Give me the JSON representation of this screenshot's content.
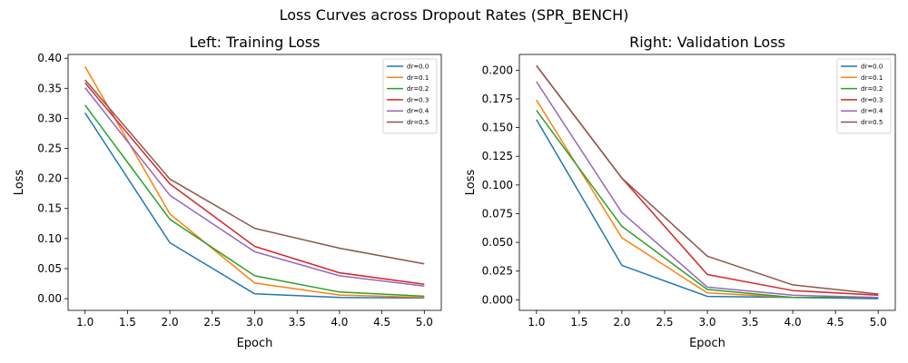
{
  "figure_title": "Loss Curves across Dropout Rates (SPR_BENCH)",
  "colors": [
    "#1f77b4",
    "#ff7f0e",
    "#2ca02c",
    "#d62728",
    "#9467bd",
    "#8c564b"
  ],
  "chart_data": [
    {
      "type": "line",
      "title": "Left: Training Loss",
      "xlabel": "Epoch",
      "ylabel": "Loss",
      "x": [
        1,
        2,
        3,
        4,
        5
      ],
      "xlim": [
        0.8,
        5.2
      ],
      "ylim": [
        -0.0195,
        0.4063
      ],
      "xticks": [
        1.0,
        1.5,
        2.0,
        2.5,
        3.0,
        3.5,
        4.0,
        4.5,
        5.0
      ],
      "xtick_labels": [
        "1.0",
        "1.5",
        "2.0",
        "2.5",
        "3.0",
        "3.5",
        "4.0",
        "4.5",
        "5.0"
      ],
      "yticks": [
        0.0,
        0.05,
        0.1,
        0.15,
        0.2,
        0.25,
        0.3,
        0.35,
        0.4
      ],
      "ytick_labels": [
        "0.00",
        "0.05",
        "0.10",
        "0.15",
        "0.20",
        "0.25",
        "0.30",
        "0.35",
        "0.40"
      ],
      "legend": "top-right",
      "grid": false,
      "series": [
        {
          "name": "dr=0.0",
          "values": [
            0.309,
            0.093,
            0.008,
            0.002,
            0.001
          ]
        },
        {
          "name": "dr=0.1",
          "values": [
            0.386,
            0.141,
            0.026,
            0.006,
            0.002
          ]
        },
        {
          "name": "dr=0.2",
          "values": [
            0.322,
            0.132,
            0.038,
            0.011,
            0.004
          ]
        },
        {
          "name": "dr=0.3",
          "values": [
            0.359,
            0.191,
            0.087,
            0.043,
            0.024
          ]
        },
        {
          "name": "dr=0.4",
          "values": [
            0.351,
            0.172,
            0.078,
            0.038,
            0.021
          ]
        },
        {
          "name": "dr=0.5",
          "values": [
            0.364,
            0.199,
            0.117,
            0.084,
            0.058
          ]
        }
      ]
    },
    {
      "type": "line",
      "title": "Right: Validation Loss",
      "xlabel": "Epoch",
      "ylabel": "Loss",
      "x": [
        1,
        2,
        3,
        4,
        5
      ],
      "xlim": [
        0.8,
        5.2
      ],
      "ylim": [
        -0.0092,
        0.2137
      ],
      "xticks": [
        1.0,
        1.5,
        2.0,
        2.5,
        3.0,
        3.5,
        4.0,
        4.5,
        5.0
      ],
      "xtick_labels": [
        "1.0",
        "1.5",
        "2.0",
        "2.5",
        "3.0",
        "3.5",
        "4.0",
        "4.5",
        "5.0"
      ],
      "yticks": [
        0.0,
        0.025,
        0.05,
        0.075,
        0.1,
        0.125,
        0.15,
        0.175,
        0.2
      ],
      "ytick_labels": [
        "0.000",
        "0.025",
        "0.050",
        "0.075",
        "0.100",
        "0.125",
        "0.150",
        "0.175",
        "0.200"
      ],
      "legend": "top-right",
      "grid": false,
      "series": [
        {
          "name": "dr=0.0",
          "values": [
            0.157,
            0.03,
            0.003,
            0.002,
            0.001
          ]
        },
        {
          "name": "dr=0.1",
          "values": [
            0.174,
            0.054,
            0.006,
            0.002,
            0.002
          ]
        },
        {
          "name": "dr=0.2",
          "values": [
            0.165,
            0.064,
            0.009,
            0.002,
            0.002
          ]
        },
        {
          "name": "dr=0.3",
          "values": [
            0.204,
            0.106,
            0.022,
            0.008,
            0.004
          ]
        },
        {
          "name": "dr=0.4",
          "values": [
            0.19,
            0.076,
            0.011,
            0.004,
            0.002
          ]
        },
        {
          "name": "dr=0.5",
          "values": [
            0.204,
            0.106,
            0.038,
            0.013,
            0.005
          ]
        }
      ]
    }
  ]
}
